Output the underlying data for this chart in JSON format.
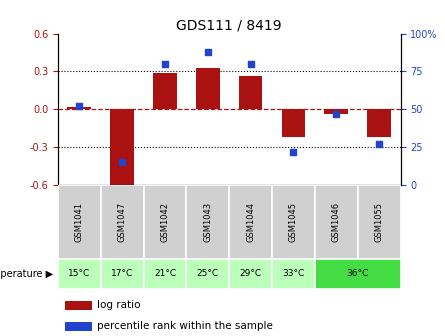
{
  "title": "GDS111 / 8419",
  "samples": [
    "GSM1041",
    "GSM1047",
    "GSM1042",
    "GSM1043",
    "GSM1044",
    "GSM1045",
    "GSM1046",
    "GSM1055"
  ],
  "temperatures": [
    "15°C",
    "17°C",
    "21°C",
    "25°C",
    "29°C",
    "33°C",
    "36°C"
  ],
  "temp_assignments": [
    0,
    1,
    2,
    3,
    4,
    5,
    6,
    6
  ],
  "log_ratios": [
    0.02,
    -0.63,
    0.29,
    0.33,
    0.26,
    -0.22,
    -0.04,
    -0.22
  ],
  "percentile_ranks": [
    52,
    15,
    80,
    88,
    80,
    22,
    47,
    27
  ],
  "ylim_left": [
    -0.6,
    0.6
  ],
  "ylim_right": [
    0,
    100
  ],
  "yticks_left": [
    -0.6,
    -0.3,
    0.0,
    0.3,
    0.6
  ],
  "yticks_right": [
    0,
    25,
    50,
    75,
    100
  ],
  "bar_color": "#aa1111",
  "dot_color": "#2244cc",
  "bg_color_gsm": "#d0d0d0",
  "bg_color_temp_light": "#bbffbb",
  "bg_color_temp_dark": "#44dd44",
  "legend_log": "log ratio",
  "legend_pct": "percentile rank within the sample",
  "title_fontsize": 10,
  "tick_fontsize": 7,
  "label_fontsize": 7,
  "bar_width": 0.55
}
